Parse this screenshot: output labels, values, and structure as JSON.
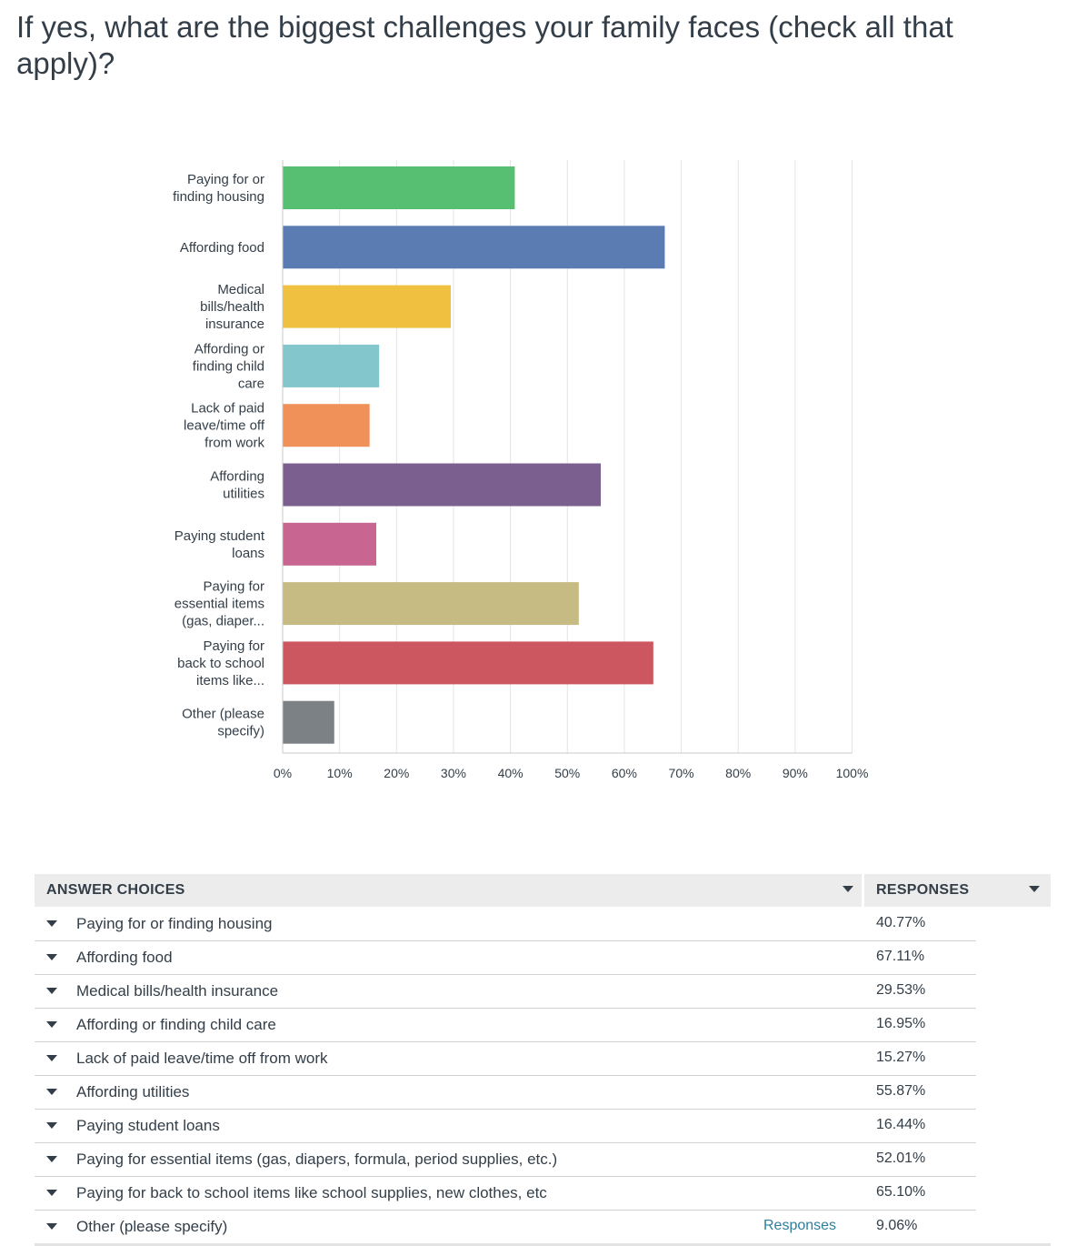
{
  "question": {
    "title": "If yes, what are the biggest challenges your family faces (check all that apply)?"
  },
  "chart_data": {
    "type": "bar",
    "orientation": "horizontal",
    "categories": [
      [
        "Paying for or",
        "finding housing"
      ],
      [
        "Affording food"
      ],
      [
        "Medical",
        "bills/health",
        "insurance"
      ],
      [
        "Affording or",
        "finding child",
        "care"
      ],
      [
        "Lack of paid",
        "leave/time off",
        "from work"
      ],
      [
        "Affording",
        "utilities"
      ],
      [
        "Paying student",
        "loans"
      ],
      [
        "Paying for",
        "essential items",
        "(gas, diaper..."
      ],
      [
        "Paying for",
        "back to school",
        "items like..."
      ],
      [
        "Other (please",
        "specify)"
      ]
    ],
    "values": [
      40.77,
      67.11,
      29.53,
      16.95,
      15.27,
      55.87,
      16.44,
      52.01,
      65.1,
      9.06
    ],
    "colors": [
      "#57bf72",
      "#5b7cb3",
      "#f0c041",
      "#83c6cc",
      "#f09159",
      "#7b5f8e",
      "#c86590",
      "#c6bb83",
      "#cc5760",
      "#7b8185"
    ],
    "xlim": [
      0,
      100
    ],
    "ticks": [
      "0%",
      "10%",
      "20%",
      "30%",
      "40%",
      "50%",
      "60%",
      "70%",
      "80%",
      "90%",
      "100%"
    ],
    "grid": true
  },
  "table": {
    "header_choices": "ANSWER CHOICES",
    "header_responses": "RESPONSES",
    "rows": [
      {
        "label": "Paying for or finding housing",
        "pct": "40.77%"
      },
      {
        "label": "Affording food",
        "pct": "67.11%"
      },
      {
        "label": "Medical bills/health insurance",
        "pct": "29.53%"
      },
      {
        "label": "Affording or finding child care",
        "pct": "16.95%"
      },
      {
        "label": "Lack of paid leave/time off from work",
        "pct": "15.27%"
      },
      {
        "label": "Affording utilities",
        "pct": "55.87%"
      },
      {
        "label": "Paying student loans",
        "pct": "16.44%"
      },
      {
        "label": "Paying for essential items (gas, diapers, formula, period supplies, etc.)",
        "pct": "52.01%"
      },
      {
        "label": "Paying for back to school items like school supplies, new clothes, etc",
        "pct": "65.10%"
      },
      {
        "label": "Other (please specify)",
        "pct": "9.06%",
        "link": "Responses"
      }
    ]
  }
}
